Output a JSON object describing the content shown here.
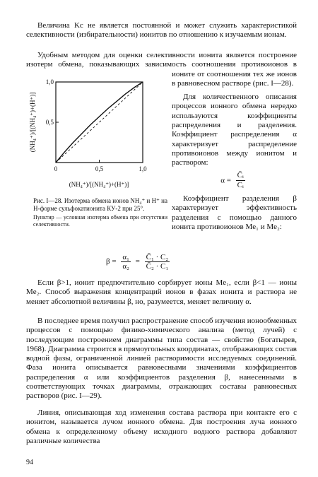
{
  "paragraphs": [
    "Величина Kс не является постоянной и может служить характеристикой селективности (избирательности) ионитов по отношению к изучаемым ионам.",
    "Удобным методом для оценки селективности ионита является построение изотерм обмена, показывающих зависимость соотношения противоионов в ионите от соотношения тех же ионов в равновесном растворе (рис. I—28).",
    "Для количественного описания процессов ионного обмена нередко используются коэффициенты распределения и разделения. Коэффициент распределения α характеризует распределение противоионов между ионитом и раствором:",
    "Коэффициент разделения β характеризует эффективность разделения с помощью данного ионита противоионов Me₁ и Me₂:",
    "Если β>1, ионит предпочтительно сорбирует ионы Me₁, если β<1 — ионы Me₂. Способ выражения концентраций ионов в фазах ионита и раствора не меняет абсолютной величины β, но, разумеется, меняет величину α.",
    "В последнее время получил распространение способ изучения ионообменных процессов с помощью физико-химического анализа (метод лучей) с последующим построением диаграммы типа состав — свойство (Богатырев, 1968). Диаграмма строится в прямоугольных координатах, отображающих состав водной фазы, ограниченной линией растворимости исследуемых соединений. Фаза ионита описывается равновесными значениями коэффициентов распределения α или коэффициентов разделения β, нанесенными в соответствующих точках диаграммы, отражающих составы равновесных растворов (рис. I—29).",
    "Линия, описывающая ход изменения состава раствора при контакте его с ионитом, называется лучом ионного обмена. Для построения луча ионного обмена к определенному объему исходного водного раствора добавляют различные количества"
  ],
  "figure": {
    "y_label": "(NH₄⁺)/[(NH₄⁺)+(H⁺)]",
    "x_label": "(NH₄⁺)/[(NH₄⁺)+(H⁺)]",
    "xlim": [
      0,
      1
    ],
    "ylim": [
      0,
      1
    ],
    "xticks": [
      0,
      {
        "value": 0.5,
        "label": "0,5"
      },
      {
        "value": 1,
        "label": "1,0"
      }
    ],
    "yticks": [
      {
        "value": 0.5,
        "label": "0,5"
      },
      {
        "value": 1,
        "label": "1,0"
      }
    ],
    "isotherm": {
      "x": [
        0,
        0.1,
        0.2,
        0.3,
        0.4,
        0.5,
        0.6,
        0.7,
        0.8,
        0.9,
        1
      ],
      "y": [
        0,
        0.13,
        0.25,
        0.36,
        0.47,
        0.57,
        0.67,
        0.76,
        0.85,
        0.93,
        1
      ]
    },
    "caption": "Рис. I—28. Изотерма обмена ионов NH₄⁺ и H⁺ на Н-форме сульфокатионита КУ-2 при 25°.",
    "note": "Пунктир — условная изотерма обмена при отсутствии селективности."
  },
  "formula_alpha": {
    "lhs": "α =",
    "numerator": "C̄ᵢ",
    "denominator": "Cᵢ"
  },
  "formula_beta": {
    "lhs": "β =",
    "frac1_num": "α₁",
    "frac1_den": "α₂",
    "eq": "=",
    "frac2_num": "C̄₁ · C₂",
    "frac2_den": "C̄₂ · C₁"
  },
  "page_number": "94"
}
